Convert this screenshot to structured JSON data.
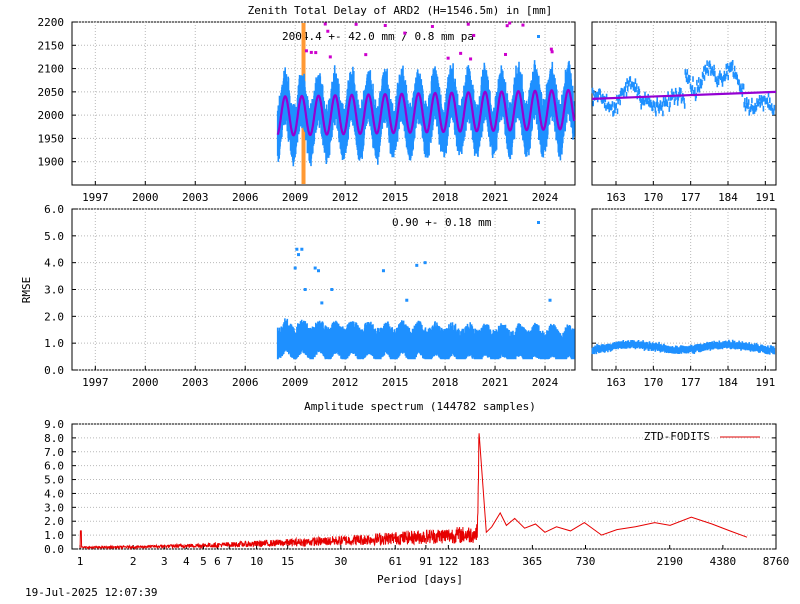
{
  "titles": {
    "top": "Zenith Total Delay of ARD2 (H=1546.5m) in [mm]",
    "spectrum": "Amplitude spectrum (144782 samples)",
    "footer": "19-Jul-2025 12:07:39"
  },
  "colors": {
    "data": "#1e90ff",
    "model": "#9400d3",
    "outlier": "#cc00cc",
    "marker": "#ff9933",
    "spectrum": "#e60000"
  },
  "chart_data": [
    {
      "id": "ztd-timeseries",
      "type": "scatter",
      "annotation": "2004.4 +-  42.0 mm /  0.8 mm pa",
      "ylim": [
        1850,
        2200
      ],
      "yticks": [
        "1900",
        "1950",
        "2000",
        "2050",
        "2100",
        "2150",
        "2200"
      ],
      "xlim": [
        1995.6,
        2025.8
      ],
      "xticks": [
        "1997",
        "2000",
        "2003",
        "2006",
        "2009",
        "2012",
        "2015",
        "2018",
        "2021",
        "2024"
      ],
      "data_start": 2007.95,
      "mean": 2004.4,
      "amplitude_seasonal": 42.0,
      "trend_per_year": 0.8,
      "marker_year": 2009.5
    },
    {
      "id": "ztd-zoom",
      "type": "scatter",
      "ylim": [
        1850,
        2200
      ],
      "xlim": [
        158.5,
        193
      ],
      "xticks": [
        "163",
        "170",
        "177",
        "184",
        "191"
      ]
    },
    {
      "id": "rmse-timeseries",
      "type": "scatter",
      "ylabel": "RMSE",
      "annotation": "0.90 +-  0.18 mm",
      "ylim": [
        0,
        6
      ],
      "yticks": [
        "0.0",
        "1.0",
        "2.0",
        "3.0",
        "4.0",
        "5.0",
        "6.0"
      ],
      "xlim": [
        1995.6,
        2025.8
      ],
      "xticks": [
        "1997",
        "2000",
        "2003",
        "2006",
        "2009",
        "2012",
        "2015",
        "2018",
        "2021",
        "2024"
      ],
      "mean": 0.9,
      "std": 0.18
    },
    {
      "id": "rmse-zoom",
      "type": "scatter",
      "ylim": [
        0,
        6
      ],
      "xlim": [
        158.5,
        193
      ],
      "xticks": [
        "163",
        "170",
        "177",
        "184",
        "191"
      ]
    },
    {
      "id": "amplitude-spectrum",
      "type": "line",
      "xlabel": "Period [days]",
      "legend": "ZTD-FODITS",
      "legend_position": "top-right",
      "ylim": [
        0,
        9
      ],
      "yticks": [
        "0.0",
        "1.0",
        "2.0",
        "3.0",
        "4.0",
        "5.0",
        "6.0",
        "7.0",
        "8.0",
        "9.0"
      ],
      "xscale": "log",
      "xlim": [
        0.9,
        8760
      ],
      "xticks": [
        1,
        2,
        3,
        4,
        5,
        6,
        7,
        10,
        15,
        30,
        61,
        91,
        122,
        183,
        365,
        730,
        2190,
        4380,
        8760
      ],
      "xticklabels": [
        "1",
        "2",
        "3",
        "4",
        "5",
        "6",
        "7",
        "10",
        "15",
        "30",
        "61",
        "91",
        "122",
        "183",
        "365",
        "730",
        "2190",
        "4380",
        "8760"
      ],
      "peaks": [
        {
          "period": 1,
          "amplitude": 1.3
        },
        {
          "period": 183,
          "amplitude": 7.8
        },
        {
          "period": 200,
          "amplitude": 2.6
        },
        {
          "period": 250,
          "amplitude": 2.7
        },
        {
          "period": 4000,
          "amplitude": 2.3
        }
      ]
    }
  ]
}
